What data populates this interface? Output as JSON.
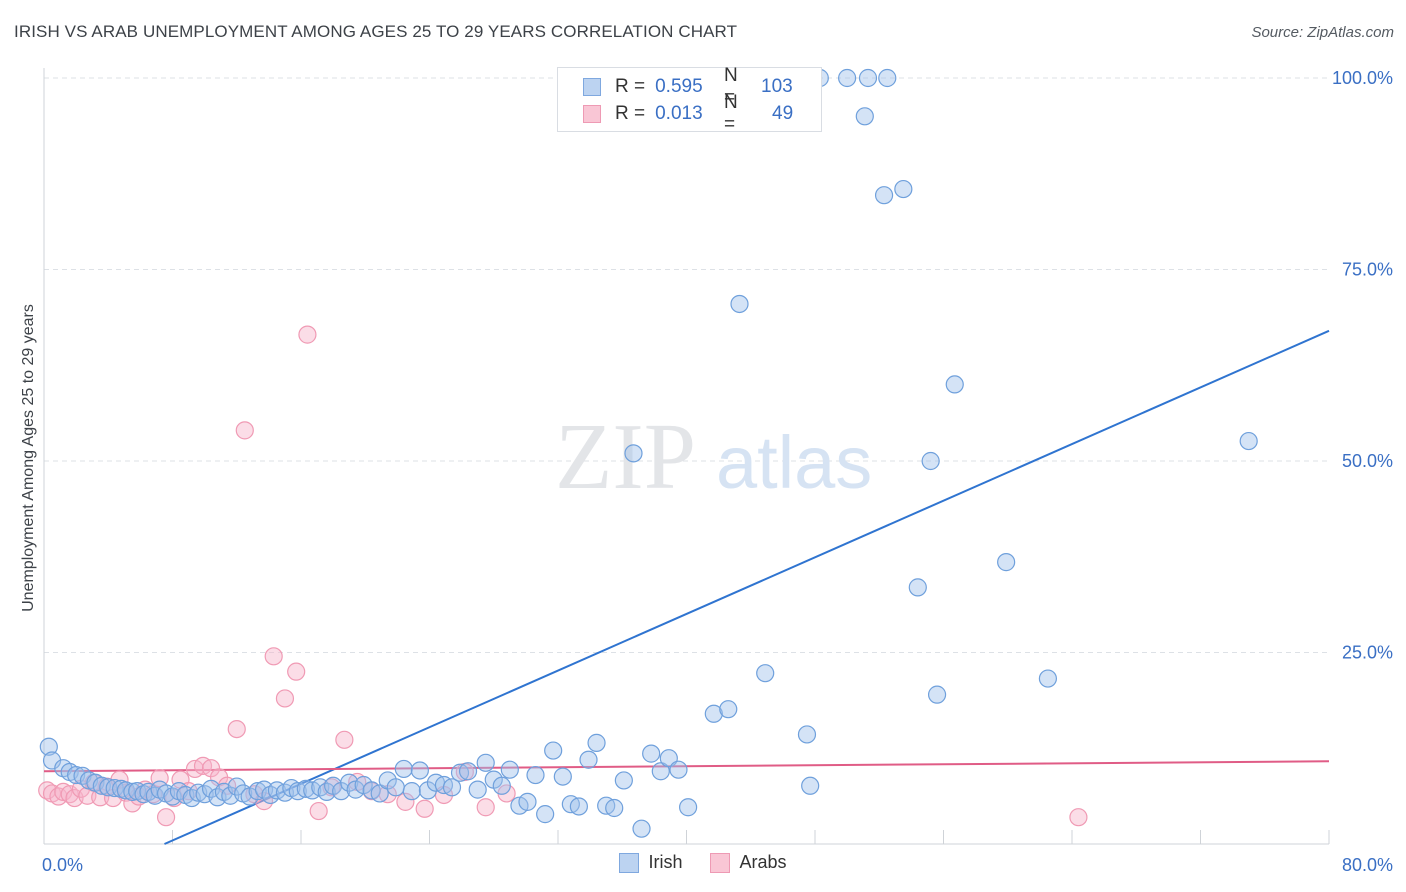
{
  "header": {
    "title": "IRISH VS ARAB UNEMPLOYMENT AMONG AGES 25 TO 29 YEARS CORRELATION CHART",
    "source": "Source: ZipAtlas.com"
  },
  "watermark": {
    "zip": "ZIP",
    "atlas": "atlas"
  },
  "legend_top": {
    "rows": [
      {
        "r_label": "R = ",
        "r_value": "0.595",
        "n_label": "N = ",
        "n_value": "103"
      },
      {
        "r_label": "R = ",
        "r_value": "0.013",
        "n_label": "N = ",
        "n_value": "49"
      }
    ]
  },
  "legend_bottom": {
    "items": [
      "Irish",
      "Arabs"
    ]
  },
  "chart_data": {
    "type": "scatter",
    "xlabel": "",
    "ylabel": "Unemployment Among Ages 25 to 29 years",
    "xlim": [
      0,
      80
    ],
    "ylim": [
      0,
      100
    ],
    "x_tick_labels": [
      "0.0%",
      "80.0%"
    ],
    "y_tick_labels": [
      "25.0%",
      "50.0%",
      "75.0%",
      "100.0%"
    ],
    "y_ticks": [
      25,
      50,
      75,
      100
    ],
    "x_ticks_minor": [
      0,
      8,
      16,
      24,
      32,
      40,
      48,
      56,
      64,
      72,
      80
    ],
    "grid": "horizontal dashed",
    "colors": {
      "irish": "#6fa0dc",
      "arabs": "#f09ab4",
      "irish_line": "#2f74d0",
      "arabs_line": "#e05c86",
      "tick_label": "#3a6fc4"
    },
    "series": [
      {
        "name": "Irish",
        "points": [
          [
            0.3,
            12.7
          ],
          [
            0.5,
            10.9
          ],
          [
            1.2,
            9.9
          ],
          [
            1.6,
            9.4
          ],
          [
            2.0,
            9.0
          ],
          [
            2.4,
            8.9
          ],
          [
            2.8,
            8.3
          ],
          [
            3.2,
            8.0
          ],
          [
            3.6,
            7.6
          ],
          [
            4.0,
            7.4
          ],
          [
            4.4,
            7.3
          ],
          [
            4.8,
            7.2
          ],
          [
            5.1,
            7.0
          ],
          [
            5.5,
            6.8
          ],
          [
            5.8,
            6.9
          ],
          [
            6.2,
            6.5
          ],
          [
            6.5,
            6.8
          ],
          [
            6.9,
            6.3
          ],
          [
            7.2,
            7.1
          ],
          [
            7.6,
            6.6
          ],
          [
            8.0,
            6.2
          ],
          [
            8.4,
            6.9
          ],
          [
            8.8,
            6.4
          ],
          [
            9.2,
            6.0
          ],
          [
            9.6,
            6.7
          ],
          [
            10.0,
            6.5
          ],
          [
            10.4,
            7.2
          ],
          [
            10.8,
            6.1
          ],
          [
            11.2,
            6.8
          ],
          [
            11.6,
            6.3
          ],
          [
            12.0,
            7.5
          ],
          [
            12.4,
            6.6
          ],
          [
            12.8,
            6.2
          ],
          [
            13.3,
            6.9
          ],
          [
            13.7,
            7.1
          ],
          [
            14.1,
            6.4
          ],
          [
            14.5,
            7.0
          ],
          [
            15.0,
            6.7
          ],
          [
            15.4,
            7.3
          ],
          [
            15.8,
            6.9
          ],
          [
            16.3,
            7.2
          ],
          [
            16.7,
            7.0
          ],
          [
            17.2,
            7.4
          ],
          [
            17.6,
            6.8
          ],
          [
            18.0,
            7.6
          ],
          [
            18.5,
            6.9
          ],
          [
            19.0,
            8.0
          ],
          [
            19.4,
            7.1
          ],
          [
            19.9,
            7.7
          ],
          [
            20.4,
            7.0
          ],
          [
            20.9,
            6.6
          ],
          [
            21.4,
            8.3
          ],
          [
            21.9,
            7.4
          ],
          [
            22.4,
            9.8
          ],
          [
            22.9,
            6.9
          ],
          [
            23.4,
            9.6
          ],
          [
            23.9,
            7.0
          ],
          [
            24.4,
            8.0
          ],
          [
            24.9,
            7.7
          ],
          [
            25.4,
            7.4
          ],
          [
            25.9,
            9.3
          ],
          [
            26.4,
            9.5
          ],
          [
            27.0,
            7.1
          ],
          [
            27.5,
            10.6
          ],
          [
            28.0,
            8.4
          ],
          [
            28.5,
            7.6
          ],
          [
            29.0,
            9.7
          ],
          [
            29.6,
            5.0
          ],
          [
            30.1,
            5.5
          ],
          [
            30.6,
            9.0
          ],
          [
            31.2,
            3.9
          ],
          [
            31.7,
            12.2
          ],
          [
            32.3,
            8.8
          ],
          [
            32.8,
            5.2
          ],
          [
            33.3,
            4.9
          ],
          [
            33.9,
            11.0
          ],
          [
            34.4,
            13.2
          ],
          [
            35.0,
            5.0
          ],
          [
            35.5,
            4.7
          ],
          [
            36.1,
            8.3
          ],
          [
            36.7,
            51.0
          ],
          [
            37.2,
            2.0
          ],
          [
            37.8,
            11.8
          ],
          [
            38.4,
            9.5
          ],
          [
            38.9,
            11.2
          ],
          [
            39.5,
            9.7
          ],
          [
            40.1,
            4.8
          ],
          [
            41.7,
            17.0
          ],
          [
            42.6,
            17.6
          ],
          [
            43.3,
            70.5
          ],
          [
            44.9,
            22.3
          ],
          [
            47.5,
            14.3
          ],
          [
            47.7,
            7.6
          ],
          [
            48.3,
            100.0
          ],
          [
            50.0,
            100.0
          ],
          [
            51.1,
            95.0
          ],
          [
            51.3,
            100.0
          ],
          [
            52.3,
            84.7
          ],
          [
            52.5,
            100.0
          ],
          [
            53.5,
            85.5
          ],
          [
            54.4,
            33.5
          ],
          [
            55.2,
            50.0
          ],
          [
            55.6,
            19.5
          ],
          [
            56.7,
            60.0
          ],
          [
            59.9,
            36.8
          ],
          [
            62.5,
            21.6
          ],
          [
            75.0,
            52.6
          ]
        ]
      },
      {
        "name": "Arabs",
        "points": [
          [
            0.2,
            7.0
          ],
          [
            0.5,
            6.6
          ],
          [
            0.9,
            6.2
          ],
          [
            1.2,
            6.8
          ],
          [
            1.6,
            6.5
          ],
          [
            1.9,
            6.0
          ],
          [
            2.3,
            7.2
          ],
          [
            2.7,
            6.3
          ],
          [
            3.1,
            8.0
          ],
          [
            3.5,
            6.1
          ],
          [
            3.9,
            7.5
          ],
          [
            4.3,
            6.0
          ],
          [
            4.7,
            8.4
          ],
          [
            5.1,
            6.7
          ],
          [
            5.5,
            5.3
          ],
          [
            5.9,
            6.2
          ],
          [
            6.3,
            7.1
          ],
          [
            6.8,
            6.5
          ],
          [
            7.2,
            8.6
          ],
          [
            7.6,
            3.5
          ],
          [
            8.1,
            6.0
          ],
          [
            8.5,
            8.4
          ],
          [
            9.0,
            6.9
          ],
          [
            9.4,
            9.8
          ],
          [
            9.9,
            10.2
          ],
          [
            10.4,
            9.9
          ],
          [
            10.9,
            8.7
          ],
          [
            11.4,
            7.6
          ],
          [
            12.0,
            15.0
          ],
          [
            12.5,
            54.0
          ],
          [
            13.1,
            6.5
          ],
          [
            13.7,
            5.6
          ],
          [
            14.3,
            24.5
          ],
          [
            15.0,
            19.0
          ],
          [
            15.7,
            22.5
          ],
          [
            16.4,
            66.5
          ],
          [
            17.1,
            4.3
          ],
          [
            17.9,
            7.4
          ],
          [
            18.7,
            13.6
          ],
          [
            19.5,
            8.1
          ],
          [
            20.4,
            6.9
          ],
          [
            21.4,
            6.5
          ],
          [
            22.5,
            5.5
          ],
          [
            23.7,
            4.6
          ],
          [
            24.9,
            6.4
          ],
          [
            26.2,
            9.4
          ],
          [
            27.5,
            4.8
          ],
          [
            28.8,
            6.6
          ],
          [
            64.4,
            3.5
          ]
        ]
      }
    ],
    "trend_lines": [
      {
        "name": "Irish",
        "x": [
          7.5,
          80.0
        ],
        "y": [
          0.0,
          67.0
        ]
      },
      {
        "name": "Arabs",
        "x": [
          0.0,
          80.0
        ],
        "y": [
          9.5,
          10.8
        ]
      }
    ]
  }
}
